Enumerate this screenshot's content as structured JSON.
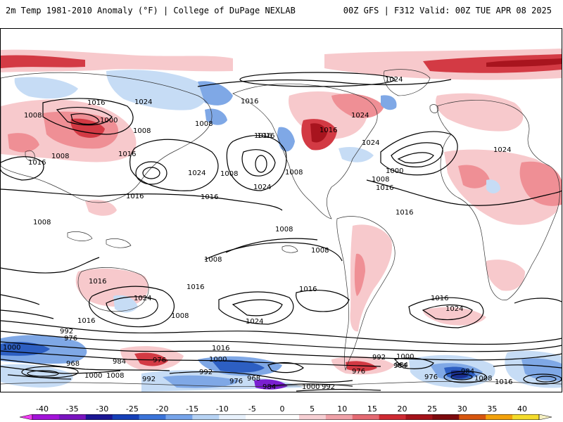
{
  "header": {
    "left_title": "2m Temp 1981-2010 Anomaly (°F) | College of DuPage NEXLAB",
    "right_title": "00Z GFS | F312 Valid: 00Z TUE APR 08 2025"
  },
  "map": {
    "contour_labels": [
      "1024",
      "1016",
      "1024",
      "1016",
      "1008",
      "1000",
      "1008",
      "1008",
      "1016",
      "1008",
      "1016",
      "1024",
      "1008",
      "1024",
      "1016",
      "1016",
      "1016",
      "1024",
      "1008",
      "1000",
      "1016",
      "1016",
      "1008",
      "1024",
      "1008",
      "1016",
      "1016",
      "1024",
      "1008",
      "1008",
      "1008",
      "1016",
      "1024",
      "1016",
      "1016",
      "1008",
      "1024",
      "1016",
      "1016",
      "1024",
      "992",
      "976",
      "1000",
      "984",
      "968",
      "1000",
      "1008",
      "992",
      "976",
      "992",
      "1016",
      "1000",
      "976",
      "968",
      "984",
      "1000",
      "992",
      "984",
      "976",
      "992",
      "1000",
      "984",
      "976",
      "984",
      "1008",
      "1016"
    ],
    "colors": {
      "warm_light": "#f7c9cc",
      "warm_mid": "#ef8f95",
      "warm_dark": "#d33a44",
      "warm_deep": "#a8141e",
      "cold_light": "#c6dcf5",
      "cold_mid": "#7fa8e6",
      "cold_dark": "#2d5fc2",
      "cold_deep": "#1a2f8f",
      "purple": "#7a1fd1"
    }
  },
  "colorbar": {
    "tick_labels": [
      "-40",
      "-35",
      "-30",
      "-25",
      "-20",
      "-15",
      "-10",
      "-5",
      "0",
      "5",
      "10",
      "15",
      "20",
      "25",
      "30",
      "35",
      "40"
    ],
    "colors": [
      "#f03af2",
      "#a313d9",
      "#7a14c0",
      "#1b1694",
      "#1640b8",
      "#3b74d9",
      "#76a4ea",
      "#b7d3f4",
      "#e9f2fc",
      "#ffffff",
      "#ffffff",
      "#f6d0d4",
      "#f0a2a9",
      "#e56a73",
      "#cf2a33",
      "#a5121a",
      "#7d0a0e",
      "#d8560f",
      "#f3a20b",
      "#f4dc2b",
      "#f5f0c2"
    ]
  }
}
